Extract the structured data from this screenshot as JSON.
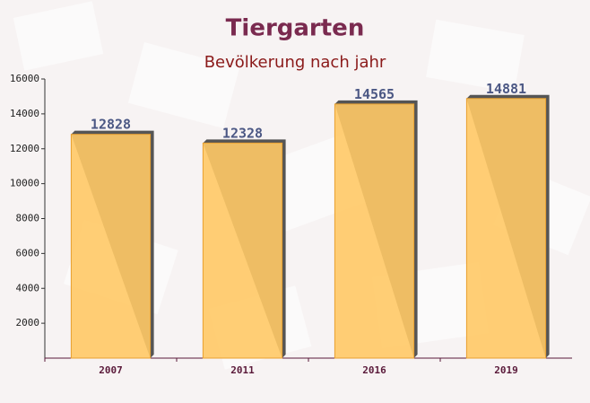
{
  "chart_data": {
    "type": "bar",
    "title": "Tiergarten",
    "subtitle": "Bevölkerung nach jahr",
    "categories": [
      "2007",
      "2011",
      "2016",
      "2019"
    ],
    "values": [
      12828,
      12328,
      14565,
      14881
    ],
    "color": "#ffc966",
    "ylim": [
      0,
      16000
    ],
    "yticks": [
      2000,
      4000,
      6000,
      8000,
      10000,
      12000,
      14000,
      16000
    ]
  }
}
